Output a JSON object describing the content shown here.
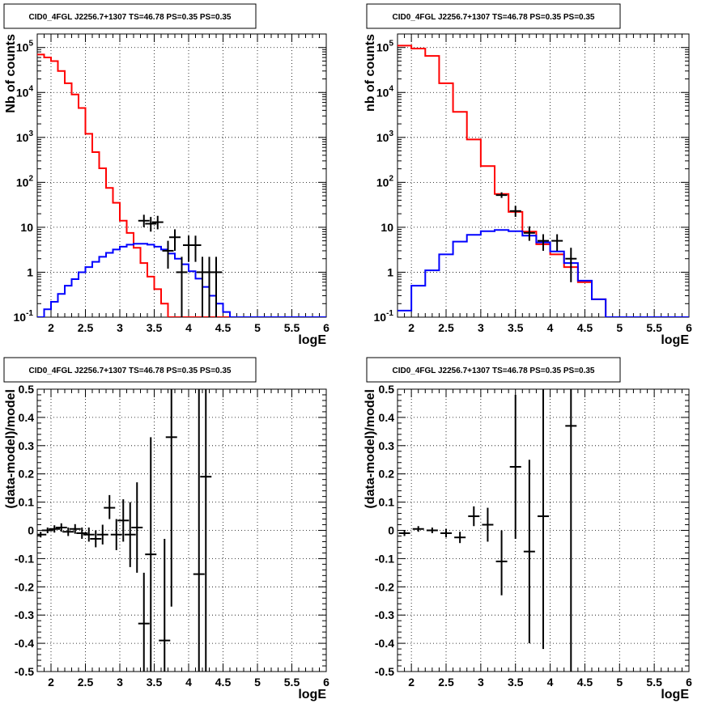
{
  "panel_title": "CID0_4FGL J2256.7+1307 TS=46.78 PS=0.35 PS=0.35",
  "colors": {
    "model_total": "#ff0000",
    "source": "#0000ff",
    "data": "#000000",
    "grid": "#000000"
  },
  "chart_data": [
    {
      "type": "line",
      "title": "CID0_4FGL J2256.7+1307 TS=46.78 PS=0.35 PS=0.35",
      "xlabel": "logE",
      "ylabel": "Nb of counts",
      "xlim": [
        1.8,
        6
      ],
      "ylim": [
        0.1,
        200000
      ],
      "yscale": "log",
      "xticks": [
        "2",
        "2.5",
        "3",
        "3.5",
        "4",
        "4.5",
        "5",
        "5.5",
        "6"
      ],
      "yticks": [
        "10^-1",
        "1",
        "10",
        "10^2",
        "10^3",
        "10^4",
        "10^5"
      ],
      "grid": true,
      "series": [
        {
          "role": "model_total",
          "x": [
            1.8,
            1.9,
            2.0,
            2.1,
            2.2,
            2.3,
            2.4,
            2.5,
            2.6,
            2.7,
            2.8,
            2.9,
            3.0,
            3.1,
            3.2,
            3.3,
            3.4,
            3.5,
            3.6,
            3.7,
            3.8,
            3.9,
            4.0,
            4.1,
            4.2,
            4.3,
            4.4,
            4.5,
            4.6,
            4.7,
            4.8,
            6.0
          ],
          "y": [
            70000,
            60000,
            50000,
            30000,
            16000,
            9000,
            4500,
            1200,
            470,
            205,
            75,
            35,
            14,
            7.5,
            3.5,
            1.6,
            0.8,
            0.42,
            0.2,
            0.1,
            0.1,
            0.1,
            0.1,
            0.1,
            0.1,
            0.1,
            0.1,
            0.1,
            0.1,
            0.1,
            0.1,
            0.1
          ]
        },
        {
          "role": "source",
          "x": [
            1.8,
            1.9,
            2.0,
            2.1,
            2.2,
            2.3,
            2.4,
            2.5,
            2.6,
            2.7,
            2.8,
            2.9,
            3.0,
            3.1,
            3.2,
            3.3,
            3.4,
            3.5,
            3.6,
            3.7,
            3.8,
            3.9,
            4.0,
            4.1,
            4.2,
            4.3,
            4.4,
            4.5,
            4.6,
            4.7,
            4.8,
            6.0
          ],
          "y": [
            0.1,
            0.15,
            0.22,
            0.33,
            0.5,
            0.7,
            1.0,
            1.3,
            1.7,
            2.2,
            2.7,
            3.2,
            3.7,
            4.1,
            4.3,
            4.3,
            4.1,
            3.7,
            3.2,
            2.6,
            2.0,
            1.5,
            1.05,
            0.72,
            0.47,
            0.3,
            0.2,
            0.13,
            0.1,
            0.1,
            0.1,
            0.1
          ]
        }
      ],
      "points": [
        {
          "x": 3.35,
          "y": 14,
          "ylo": 10,
          "yhi": 19
        },
        {
          "x": 3.45,
          "y": 12,
          "ylo": 8,
          "yhi": 17
        },
        {
          "x": 3.55,
          "y": 13,
          "ylo": 9,
          "yhi": 18
        },
        {
          "x": 3.7,
          "y": 3,
          "ylo": 1.2,
          "yhi": 5
        },
        {
          "x": 3.8,
          "y": 6,
          "ylo": 3,
          "yhi": 9
        },
        {
          "x": 3.9,
          "y": 1,
          "ylo": 0.1,
          "yhi": 2.2
        },
        {
          "x": 4.0,
          "y": 4,
          "ylo": 1.7,
          "yhi": 6.5
        },
        {
          "x": 4.1,
          "y": 4,
          "ylo": 1.7,
          "yhi": 6.5
        },
        {
          "x": 4.2,
          "y": 1,
          "ylo": 0.1,
          "yhi": 2.2
        },
        {
          "x": 4.3,
          "y": 1,
          "ylo": 0.1,
          "yhi": 2.2
        },
        {
          "x": 4.4,
          "y": 1,
          "ylo": 0.1,
          "yhi": 2.2
        }
      ]
    },
    {
      "type": "line",
      "title": "CID0_4FGL J2256.7+1307 TS=46.78 PS=0.35 PS=0.35",
      "xlabel": "logE",
      "ylabel": "nb of counts",
      "xlim": [
        1.8,
        6
      ],
      "ylim": [
        0.1,
        200000
      ],
      "yscale": "log",
      "xticks": [
        "2",
        "2.5",
        "3",
        "3.5",
        "4",
        "4.5",
        "5",
        "5.5",
        "6"
      ],
      "yticks": [
        "10^-1",
        "1",
        "10",
        "10^2",
        "10^3",
        "10^4",
        "10^5"
      ],
      "grid": true,
      "series": [
        {
          "role": "model_total",
          "x": [
            1.8,
            2.0,
            2.2,
            2.4,
            2.6,
            2.8,
            3.0,
            3.2,
            3.4,
            3.6,
            3.8,
            4.0,
            4.2,
            4.4,
            4.6,
            4.8,
            6.0
          ],
          "y": [
            110000,
            95000,
            65000,
            16000,
            3700,
            900,
            230,
            55,
            22,
            8,
            4.2,
            2.5,
            1.3,
            0.6,
            0.25,
            0.1,
            0.1
          ]
        },
        {
          "role": "source",
          "x": [
            1.8,
            2.0,
            2.2,
            2.4,
            2.6,
            2.8,
            3.0,
            3.2,
            3.4,
            3.6,
            3.8,
            4.0,
            4.2,
            4.4,
            4.6,
            4.8,
            6.0
          ],
          "y": [
            0.14,
            0.5,
            1.1,
            2.5,
            4.8,
            6.8,
            8.2,
            8.7,
            8.2,
            6.5,
            4.6,
            2.9,
            1.6,
            0.65,
            0.25,
            0.1,
            0.1
          ]
        }
      ],
      "points": [
        {
          "x": 3.3,
          "y": 52,
          "ylo": 45,
          "yhi": 60
        },
        {
          "x": 3.5,
          "y": 23,
          "ylo": 17,
          "yhi": 30
        },
        {
          "x": 3.7,
          "y": 7.5,
          "ylo": 5,
          "yhi": 10.5
        },
        {
          "x": 3.9,
          "y": 5,
          "ylo": 3,
          "yhi": 7
        },
        {
          "x": 4.1,
          "y": 5,
          "ylo": 3,
          "yhi": 7
        },
        {
          "x": 4.3,
          "y": 2,
          "ylo": 0.6,
          "yhi": 3.5
        }
      ]
    },
    {
      "type": "scatter",
      "title": "CID0_4FGL J2256.7+1307 TS=46.78 PS=0.35 PS=0.35",
      "xlabel": "logE",
      "ylabel": "(data-model)/model",
      "xlim": [
        1.8,
        6
      ],
      "ylim": [
        -0.5,
        0.5
      ],
      "xticks": [
        "2",
        "2.5",
        "3",
        "3.5",
        "4",
        "4.5",
        "5",
        "5.5",
        "6"
      ],
      "yticks": [
        "-0.5",
        "-0.4",
        "-0.3",
        "-0.2",
        "-0.1",
        "0",
        "0.1",
        "0.2",
        "0.3",
        "0.4",
        "0.5"
      ],
      "grid": true,
      "points": [
        {
          "x": 1.85,
          "y": -0.015,
          "ylo": -0.025,
          "yhi": -0.005
        },
        {
          "x": 1.95,
          "y": 0.0,
          "ylo": -0.01,
          "yhi": 0.01
        },
        {
          "x": 2.05,
          "y": 0.005,
          "ylo": -0.008,
          "yhi": 0.018
        },
        {
          "x": 2.15,
          "y": 0.01,
          "ylo": -0.005,
          "yhi": 0.025
        },
        {
          "x": 2.25,
          "y": -0.005,
          "ylo": -0.02,
          "yhi": 0.01
        },
        {
          "x": 2.35,
          "y": 0.005,
          "ylo": -0.012,
          "yhi": 0.022
        },
        {
          "x": 2.45,
          "y": -0.01,
          "ylo": -0.03,
          "yhi": 0.01
        },
        {
          "x": 2.55,
          "y": -0.015,
          "ylo": -0.04,
          "yhi": 0.01
        },
        {
          "x": 2.65,
          "y": -0.03,
          "ylo": -0.06,
          "yhi": 0.0
        },
        {
          "x": 2.75,
          "y": -0.015,
          "ylo": -0.05,
          "yhi": 0.02
        },
        {
          "x": 2.85,
          "y": 0.08,
          "ylo": 0.04,
          "yhi": 0.125
        },
        {
          "x": 2.95,
          "y": -0.015,
          "ylo": -0.07,
          "yhi": 0.04
        },
        {
          "x": 3.05,
          "y": 0.035,
          "ylo": -0.04,
          "yhi": 0.11
        },
        {
          "x": 3.15,
          "y": -0.015,
          "ylo": -0.13,
          "yhi": 0.1
        },
        {
          "x": 3.25,
          "y": 0.01,
          "ylo": -0.15,
          "yhi": 0.17
        },
        {
          "x": 3.35,
          "y": -0.33,
          "ylo": -0.5,
          "yhi": -0.15
        },
        {
          "x": 3.45,
          "y": -0.085,
          "ylo": -0.5,
          "yhi": 0.33
        },
        {
          "x": 3.65,
          "y": -0.39,
          "ylo": -0.5,
          "yhi": -0.03
        },
        {
          "x": 3.75,
          "y": 0.33,
          "ylo": -0.27,
          "yhi": 0.5
        },
        {
          "x": 4.15,
          "y": -0.155,
          "ylo": -0.5,
          "yhi": 0.5
        },
        {
          "x": 4.25,
          "y": 0.19,
          "ylo": -0.5,
          "yhi": 0.5
        }
      ]
    },
    {
      "type": "scatter",
      "title": "CID0_4FGL J2256.7+1307 TS=46.78 PS=0.35 PS=0.35",
      "xlabel": "logE",
      "ylabel": "(data-model)/model",
      "xlim": [
        1.8,
        6
      ],
      "ylim": [
        -0.5,
        0.5
      ],
      "xticks": [
        "2",
        "2.5",
        "3",
        "3.5",
        "4",
        "4.5",
        "5",
        "5.5",
        "6"
      ],
      "yticks": [
        "-0.5",
        "-0.4",
        "-0.3",
        "-0.2",
        "-0.1",
        "0",
        "0.1",
        "0.2",
        "0.3",
        "0.4",
        "0.5"
      ],
      "grid": true,
      "points": [
        {
          "x": 1.9,
          "y": -0.01,
          "ylo": -0.02,
          "yhi": 0.0
        },
        {
          "x": 2.1,
          "y": 0.005,
          "ylo": -0.005,
          "yhi": 0.015
        },
        {
          "x": 2.3,
          "y": 0.0,
          "ylo": -0.01,
          "yhi": 0.01
        },
        {
          "x": 2.5,
          "y": -0.01,
          "ylo": -0.025,
          "yhi": 0.005
        },
        {
          "x": 2.7,
          "y": -0.025,
          "ylo": -0.045,
          "yhi": -0.005
        },
        {
          "x": 2.9,
          "y": 0.05,
          "ylo": 0.015,
          "yhi": 0.085
        },
        {
          "x": 3.1,
          "y": 0.02,
          "ylo": -0.04,
          "yhi": 0.08
        },
        {
          "x": 3.3,
          "y": -0.11,
          "ylo": -0.23,
          "yhi": 0.0
        },
        {
          "x": 3.5,
          "y": 0.225,
          "ylo": -0.03,
          "yhi": 0.48
        },
        {
          "x": 3.7,
          "y": -0.075,
          "ylo": -0.4,
          "yhi": 0.25
        },
        {
          "x": 3.9,
          "y": 0.05,
          "ylo": -0.42,
          "yhi": 0.5
        },
        {
          "x": 4.3,
          "y": 0.37,
          "ylo": -0.5,
          "yhi": 0.5
        }
      ]
    }
  ]
}
